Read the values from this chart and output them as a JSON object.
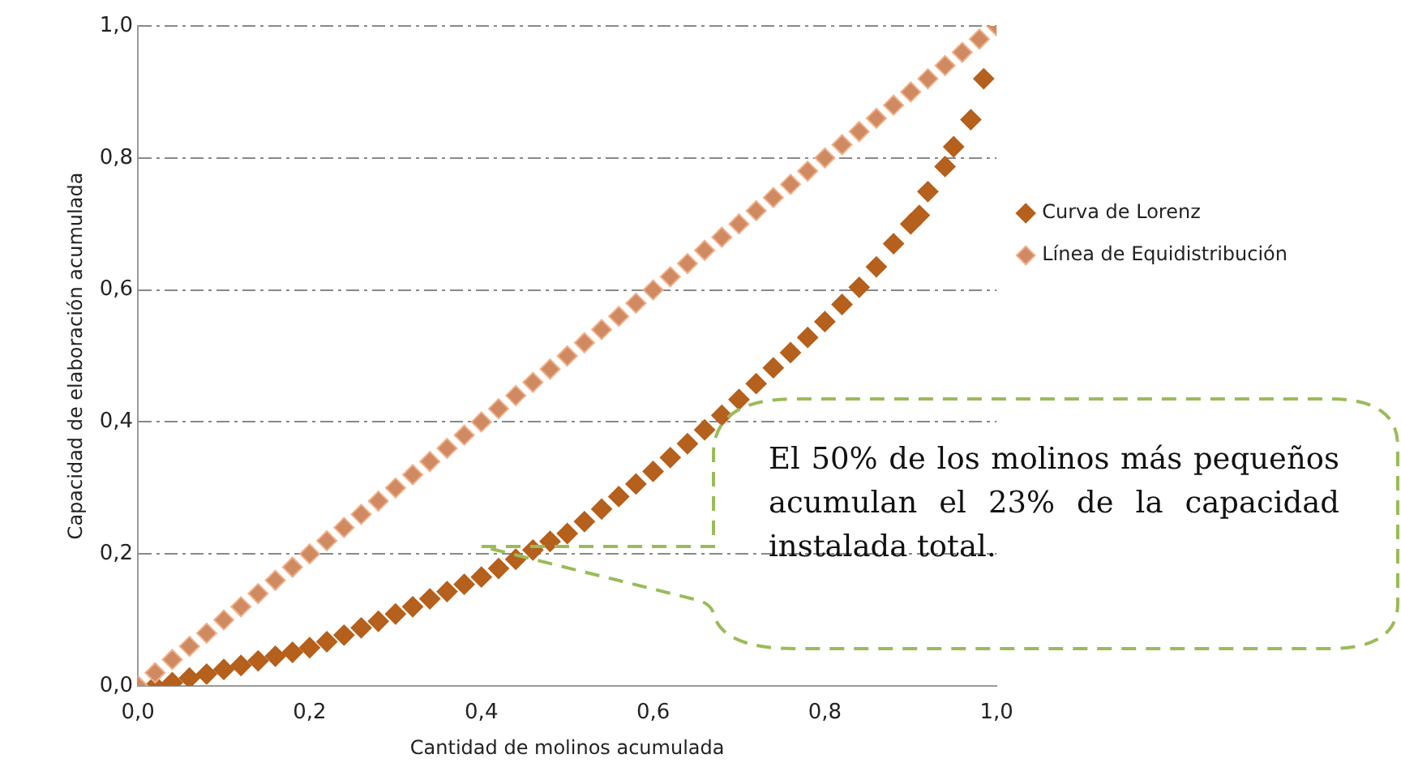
{
  "chart_data": {
    "type": "scatter",
    "xlabel": "Cantidad de molinos acumulada",
    "ylabel": "Capacidad de elaboración acumulada",
    "xlim": [
      0,
      1
    ],
    "ylim": [
      0,
      1
    ],
    "xticks": [
      {
        "value": 0,
        "label": "0,0"
      },
      {
        "value": 0.2,
        "label": "0,2"
      },
      {
        "value": 0.4,
        "label": "0,4"
      },
      {
        "value": 0.6,
        "label": "0,6"
      },
      {
        "value": 0.8,
        "label": "0,8"
      },
      {
        "value": 1,
        "label": "1,0"
      }
    ],
    "yticks": [
      {
        "value": 0,
        "label": "0,0"
      },
      {
        "value": 0.2,
        "label": "0,2"
      },
      {
        "value": 0.4,
        "label": "0,4"
      },
      {
        "value": 0.6,
        "label": "0,6"
      },
      {
        "value": 0.8,
        "label": "0,8"
      },
      {
        "value": 1,
        "label": "1,0"
      }
    ],
    "grid": "y",
    "legend": "right",
    "marker": "diamond",
    "series": [
      {
        "name": "Curva de Lorenz",
        "color": "#b5601c",
        "x": [
          0.02,
          0.04,
          0.06,
          0.08,
          0.1,
          0.12,
          0.14,
          0.16,
          0.18,
          0.2,
          0.22,
          0.24,
          0.26,
          0.28,
          0.3,
          0.32,
          0.34,
          0.36,
          0.38,
          0.4,
          0.42,
          0.44,
          0.46,
          0.48,
          0.5,
          0.52,
          0.54,
          0.56,
          0.58,
          0.6,
          0.62,
          0.64,
          0.66,
          0.68,
          0.7,
          0.72,
          0.74,
          0.76,
          0.78,
          0.8,
          0.82,
          0.84,
          0.86,
          0.88,
          0.9,
          0.91,
          0.92,
          0.94,
          0.95,
          0.97,
          0.985
        ],
        "values": [
          0.0,
          0.005,
          0.012,
          0.018,
          0.025,
          0.031,
          0.038,
          0.045,
          0.051,
          0.058,
          0.067,
          0.077,
          0.088,
          0.098,
          0.109,
          0.12,
          0.132,
          0.143,
          0.154,
          0.165,
          0.178,
          0.192,
          0.206,
          0.219,
          0.231,
          0.249,
          0.268,
          0.287,
          0.306,
          0.325,
          0.346,
          0.367,
          0.388,
          0.41,
          0.434,
          0.458,
          0.482,
          0.505,
          0.528,
          0.552,
          0.578,
          0.604,
          0.635,
          0.67,
          0.7,
          0.713,
          0.749,
          0.787,
          0.817,
          0.858,
          0.92
        ]
      },
      {
        "name": "Línea de Equidistribución",
        "color": "#d08a62",
        "x": [
          0,
          0.02,
          0.04,
          0.06,
          0.08,
          0.1,
          0.12,
          0.14,
          0.16,
          0.18,
          0.2,
          0.22,
          0.24,
          0.26,
          0.28,
          0.3,
          0.32,
          0.34,
          0.36,
          0.38,
          0.4,
          0.42,
          0.44,
          0.46,
          0.48,
          0.5,
          0.52,
          0.54,
          0.56,
          0.58,
          0.6,
          0.62,
          0.64,
          0.66,
          0.68,
          0.7,
          0.72,
          0.74,
          0.76,
          0.78,
          0.8,
          0.82,
          0.84,
          0.86,
          0.88,
          0.9,
          0.92,
          0.94,
          0.96,
          0.98,
          1.0
        ],
        "values": [
          0,
          0.02,
          0.04,
          0.06,
          0.08,
          0.1,
          0.12,
          0.14,
          0.16,
          0.18,
          0.2,
          0.22,
          0.24,
          0.26,
          0.28,
          0.3,
          0.32,
          0.34,
          0.36,
          0.38,
          0.4,
          0.42,
          0.44,
          0.46,
          0.48,
          0.5,
          0.52,
          0.54,
          0.56,
          0.58,
          0.6,
          0.62,
          0.64,
          0.66,
          0.68,
          0.7,
          0.72,
          0.74,
          0.76,
          0.78,
          0.8,
          0.82,
          0.84,
          0.86,
          0.88,
          0.9,
          0.92,
          0.94,
          0.96,
          0.98,
          1.0
        ]
      }
    ],
    "annotations": [
      "El 50% de los molinos más pequeños acumulan el 23% de la capacidad instalada total."
    ]
  }
}
